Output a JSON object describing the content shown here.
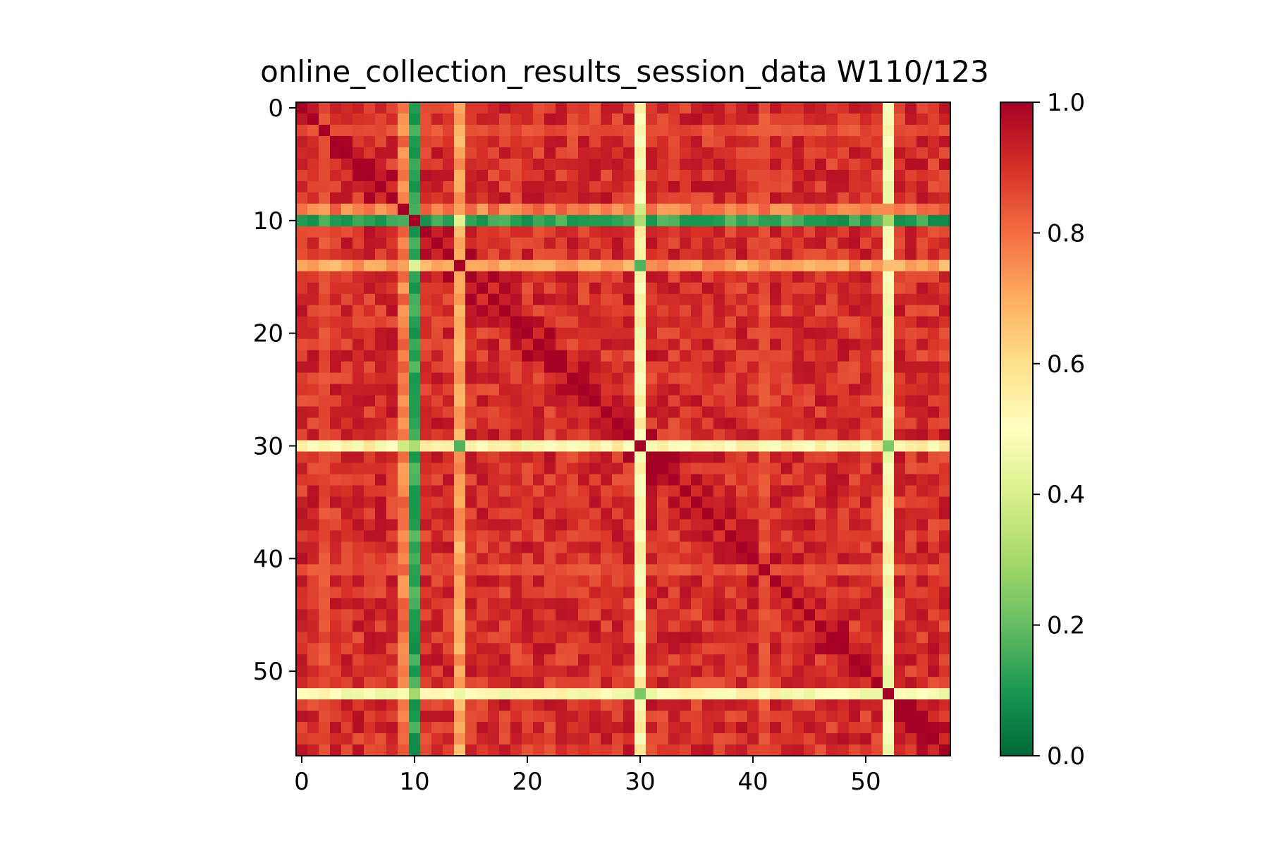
{
  "chart_data": {
    "type": "heatmap",
    "title": "online_collection_results_session_data W110/123",
    "xlabel": "",
    "ylabel": "",
    "n": 58,
    "x_ticks": [
      0,
      10,
      20,
      30,
      40,
      50
    ],
    "y_ticks": [
      0,
      10,
      20,
      30,
      40,
      50
    ],
    "colormap": "RdYlGn_r",
    "colorbar": {
      "range": [
        0.0,
        1.0
      ],
      "ticks": [
        "0.0",
        "0.2",
        "0.4",
        "0.6",
        "0.8",
        "1.0"
      ]
    },
    "diagonal_value": 1.0,
    "base_value_range": [
      0.84,
      0.97
    ],
    "outlier_rows": [
      {
        "index": 9,
        "typical_value": 0.78
      },
      {
        "index": 10,
        "typical_value": 0.13
      },
      {
        "index": 14,
        "typical_value": 0.72
      },
      {
        "index": 30,
        "typical_value": 0.52
      },
      {
        "index": 52,
        "typical_value": 0.5
      }
    ],
    "outlier_pairs": [
      {
        "i": 9,
        "j": 10,
        "value": 0.16
      },
      {
        "i": 10,
        "j": 14,
        "value": 0.42
      },
      {
        "i": 10,
        "j": 30,
        "value": 0.32
      },
      {
        "i": 10,
        "j": 52,
        "value": 0.3
      },
      {
        "i": 14,
        "j": 30,
        "value": 0.17
      },
      {
        "i": 30,
        "j": 52,
        "value": 0.24
      },
      {
        "i": 9,
        "j": 30,
        "value": 0.38
      },
      {
        "i": 9,
        "j": 14,
        "value": 0.72
      }
    ],
    "weaker_rows": [
      {
        "index": 41,
        "typical_value": 0.82
      },
      {
        "index": 2,
        "typical_value": 0.82
      }
    ]
  },
  "colors": {
    "background": "#ffffff",
    "axis": "#000000"
  }
}
